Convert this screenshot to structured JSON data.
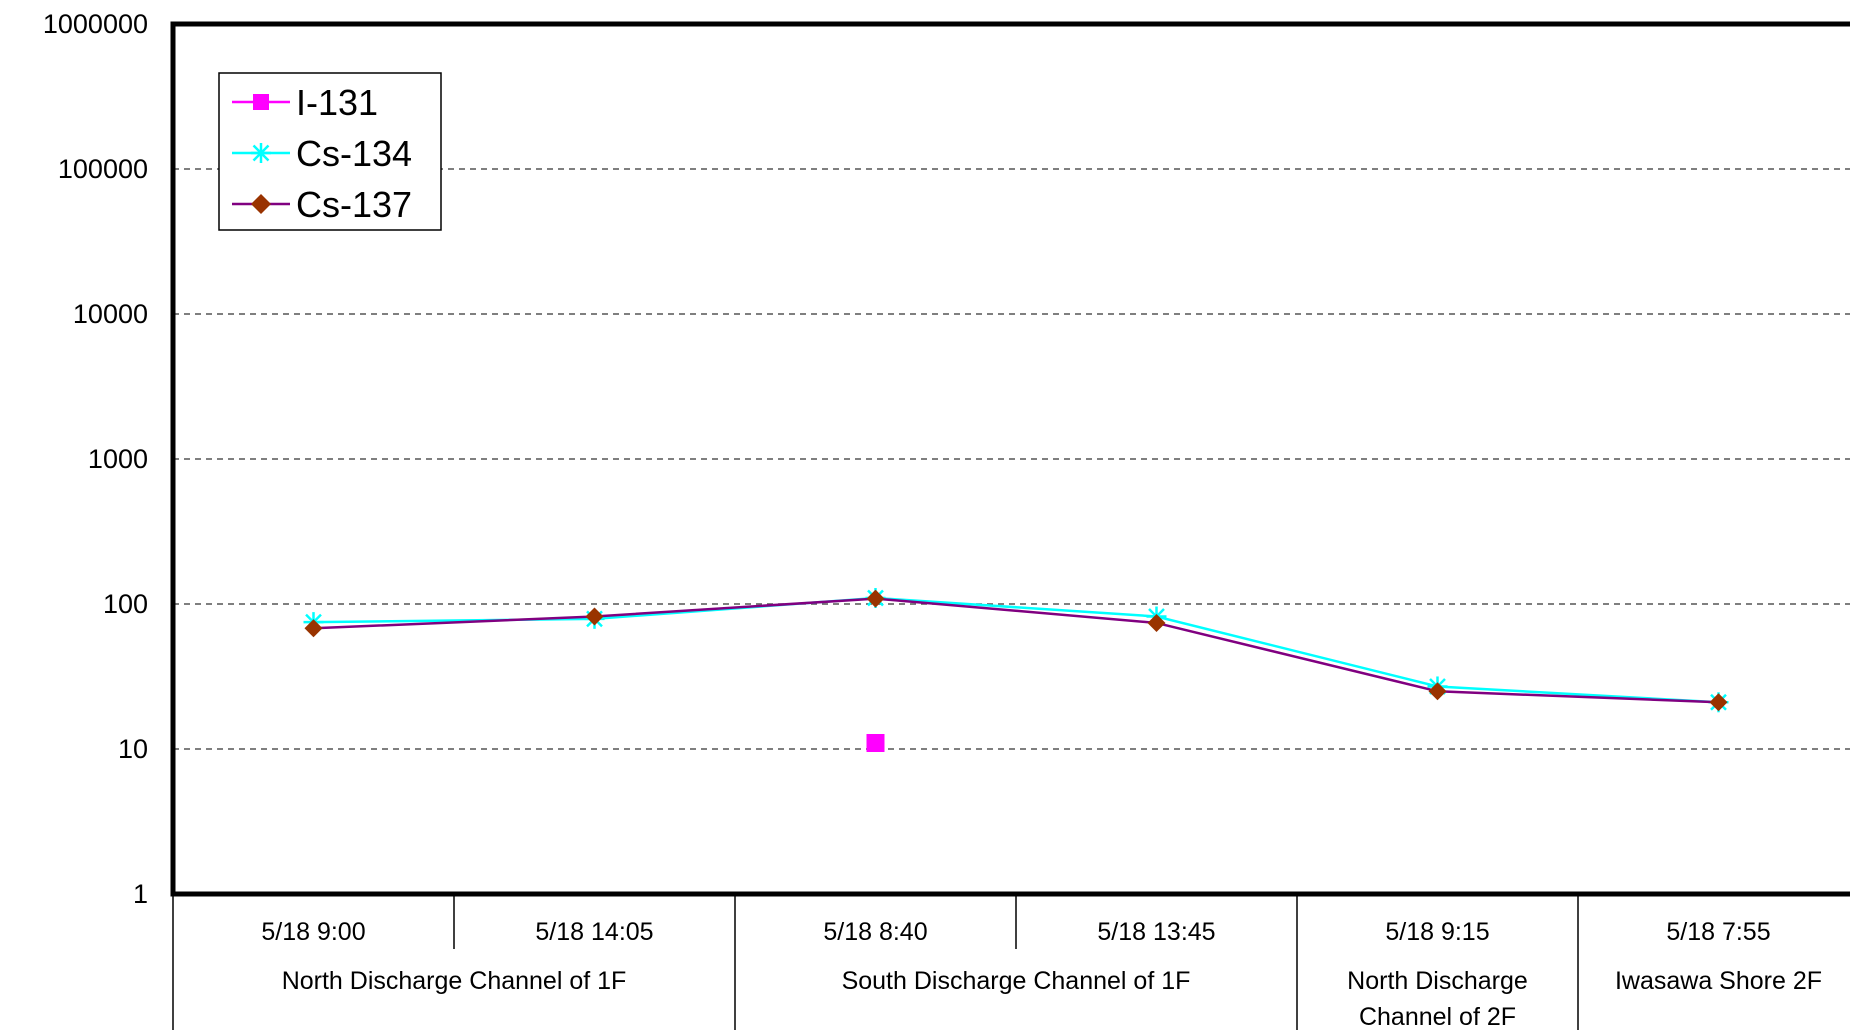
{
  "chart_data": {
    "type": "line",
    "y_scale": "log",
    "ylim": [
      1,
      1000000
    ],
    "y_ticks": [
      "1",
      "10",
      "100",
      "1000",
      "10000",
      "100000",
      "1000000"
    ],
    "grid": "horizontal dashed",
    "legend_position": "top-left",
    "categories": [
      "5/18 9:00",
      "5/18 14:05",
      "5/18 8:40",
      "5/18 13:45",
      "5/18 9:15",
      "5/18 7:55"
    ],
    "groups": [
      {
        "label": "North Discharge Channel of 1F",
        "span": 2
      },
      {
        "label": "South Discharge Channel of 1F",
        "span": 2
      },
      {
        "label_lines": [
          "North Discharge",
          "Channel of 2F"
        ],
        "span": 1
      },
      {
        "label": "Iwasawa Shore 2F",
        "span": 1
      }
    ],
    "series": [
      {
        "name": "I-131",
        "color": "#ff00ff",
        "marker": "square",
        "values": [
          null,
          null,
          11,
          null,
          null,
          null
        ]
      },
      {
        "name": "Cs-134",
        "color": "#00ffff",
        "marker": "asterisk",
        "values": [
          75,
          79,
          110,
          82,
          27,
          21
        ]
      },
      {
        "name": "Cs-137",
        "color": "#800080",
        "marker_color": "#993300",
        "marker": "diamond",
        "values": [
          68,
          82,
          109,
          74,
          25,
          21
        ]
      }
    ]
  }
}
